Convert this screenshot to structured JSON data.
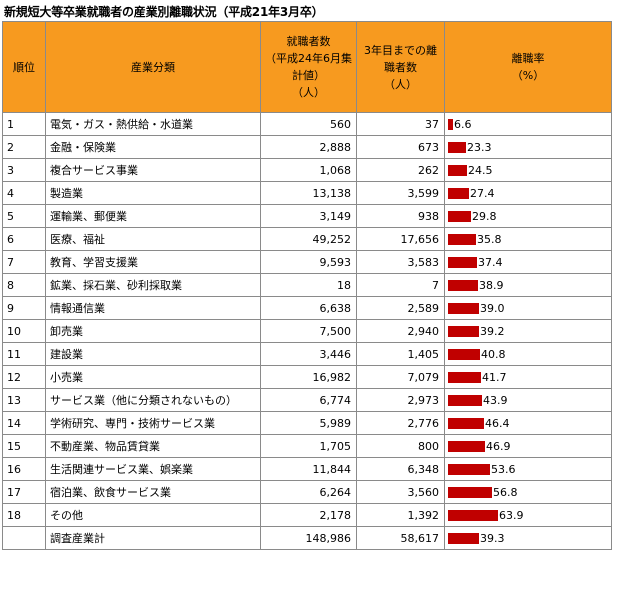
{
  "title": "新規短大等卒業就職者の産業別離職状況（平成21年3月卒）",
  "header": {
    "rank": "順位",
    "industry": "産業分類",
    "employed": "就職者数\n（平成24年6月集計値）\n（人）",
    "left": "3年目までの離職者数\n（人）",
    "rate": "離職率\n（%）"
  },
  "colors": {
    "header_bg": "#f79a1f",
    "bar": "#c00000"
  },
  "chart_data": {
    "type": "table",
    "columns": [
      "順位",
      "産業分類",
      "就職者数（平成24年6月集計値）（人）",
      "3年目までの離職者数（人）",
      "離職率（%）"
    ],
    "rows": [
      {
        "rank": "1",
        "industry": "電気・ガス・熱供給・水道業",
        "employed": "560",
        "left": "37",
        "rate": "6.6",
        "rate_value": 6.6
      },
      {
        "rank": "2",
        "industry": "金融・保険業",
        "employed": "2,888",
        "left": "673",
        "rate": "23.3",
        "rate_value": 23.3
      },
      {
        "rank": "3",
        "industry": "複合サービス事業",
        "employed": "1,068",
        "left": "262",
        "rate": "24.5",
        "rate_value": 24.5
      },
      {
        "rank": "4",
        "industry": "製造業",
        "employed": "13,138",
        "left": "3,599",
        "rate": "27.4",
        "rate_value": 27.4
      },
      {
        "rank": "5",
        "industry": "運輸業、郵便業",
        "employed": "3,149",
        "left": "938",
        "rate": "29.8",
        "rate_value": 29.8
      },
      {
        "rank": "6",
        "industry": "医療、福祉",
        "employed": "49,252",
        "left": "17,656",
        "rate": "35.8",
        "rate_value": 35.8
      },
      {
        "rank": "7",
        "industry": "教育、学習支援業",
        "employed": "9,593",
        "left": "3,583",
        "rate": "37.4",
        "rate_value": 37.4
      },
      {
        "rank": "8",
        "industry": "鉱業、採石業、砂利採取業",
        "employed": "18",
        "left": "7",
        "rate": "38.9",
        "rate_value": 38.9
      },
      {
        "rank": "9",
        "industry": "情報通信業",
        "employed": "6,638",
        "left": "2,589",
        "rate": "39.0",
        "rate_value": 39.0
      },
      {
        "rank": "10",
        "industry": "卸売業",
        "employed": "7,500",
        "left": "2,940",
        "rate": "39.2",
        "rate_value": 39.2
      },
      {
        "rank": "11",
        "industry": "建設業",
        "employed": "3,446",
        "left": "1,405",
        "rate": "40.8",
        "rate_value": 40.8
      },
      {
        "rank": "12",
        "industry": "小売業",
        "employed": "16,982",
        "left": "7,079",
        "rate": "41.7",
        "rate_value": 41.7
      },
      {
        "rank": "13",
        "industry": "サービス業（他に分類されないもの）",
        "employed": "6,774",
        "left": "2,973",
        "rate": "43.9",
        "rate_value": 43.9
      },
      {
        "rank": "14",
        "industry": "学術研究、専門・技術サービス業",
        "employed": "5,989",
        "left": "2,776",
        "rate": "46.4",
        "rate_value": 46.4
      },
      {
        "rank": "15",
        "industry": "不動産業、物品賃貸業",
        "employed": "1,705",
        "left": "800",
        "rate": "46.9",
        "rate_value": 46.9
      },
      {
        "rank": "16",
        "industry": "生活関連サービス業、娯楽業",
        "employed": "11,844",
        "left": "6,348",
        "rate": "53.6",
        "rate_value": 53.6
      },
      {
        "rank": "17",
        "industry": "宿泊業、飲食サービス業",
        "employed": "6,264",
        "left": "3,560",
        "rate": "56.8",
        "rate_value": 56.8
      },
      {
        "rank": "18",
        "industry": "その他",
        "employed": "2,178",
        "left": "1,392",
        "rate": "63.9",
        "rate_value": 63.9
      },
      {
        "rank": "",
        "industry": "調査産業計",
        "employed": "148,986",
        "left": "58,617",
        "rate": "39.3",
        "rate_value": 39.3
      }
    ]
  }
}
